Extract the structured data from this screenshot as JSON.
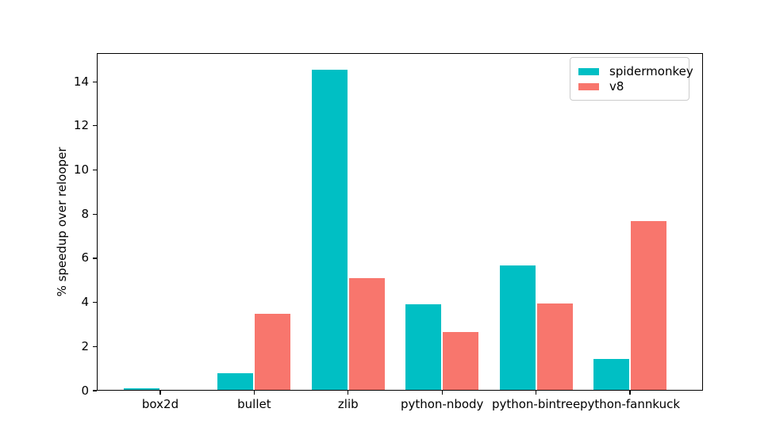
{
  "chart_data": {
    "type": "bar",
    "title": "",
    "xlabel": "",
    "ylabel": "% speedup over relooper",
    "categories": [
      "box2d",
      "bullet",
      "zlib",
      "python-nbody",
      "python-bintree",
      "python-fannkuck"
    ],
    "series": [
      {
        "name": "spidermonkey",
        "color": "#00BFC4",
        "values": [
          0.08,
          0.75,
          14.5,
          3.87,
          5.65,
          1.4
        ]
      },
      {
        "name": "v8",
        "color": "#F8766D",
        "values": [
          0.0,
          3.45,
          5.05,
          2.62,
          3.9,
          7.65
        ]
      }
    ],
    "ylim": [
      0,
      15.3
    ],
    "yticks": [
      0,
      2,
      4,
      6,
      8,
      10,
      12,
      14
    ],
    "grid": false,
    "legend_position": "upper right",
    "bar_width_fraction": 0.38
  },
  "colors": {
    "background": "#ffffff",
    "spine": "#000000",
    "text": "#000000",
    "legend_border": "#cccccc"
  }
}
